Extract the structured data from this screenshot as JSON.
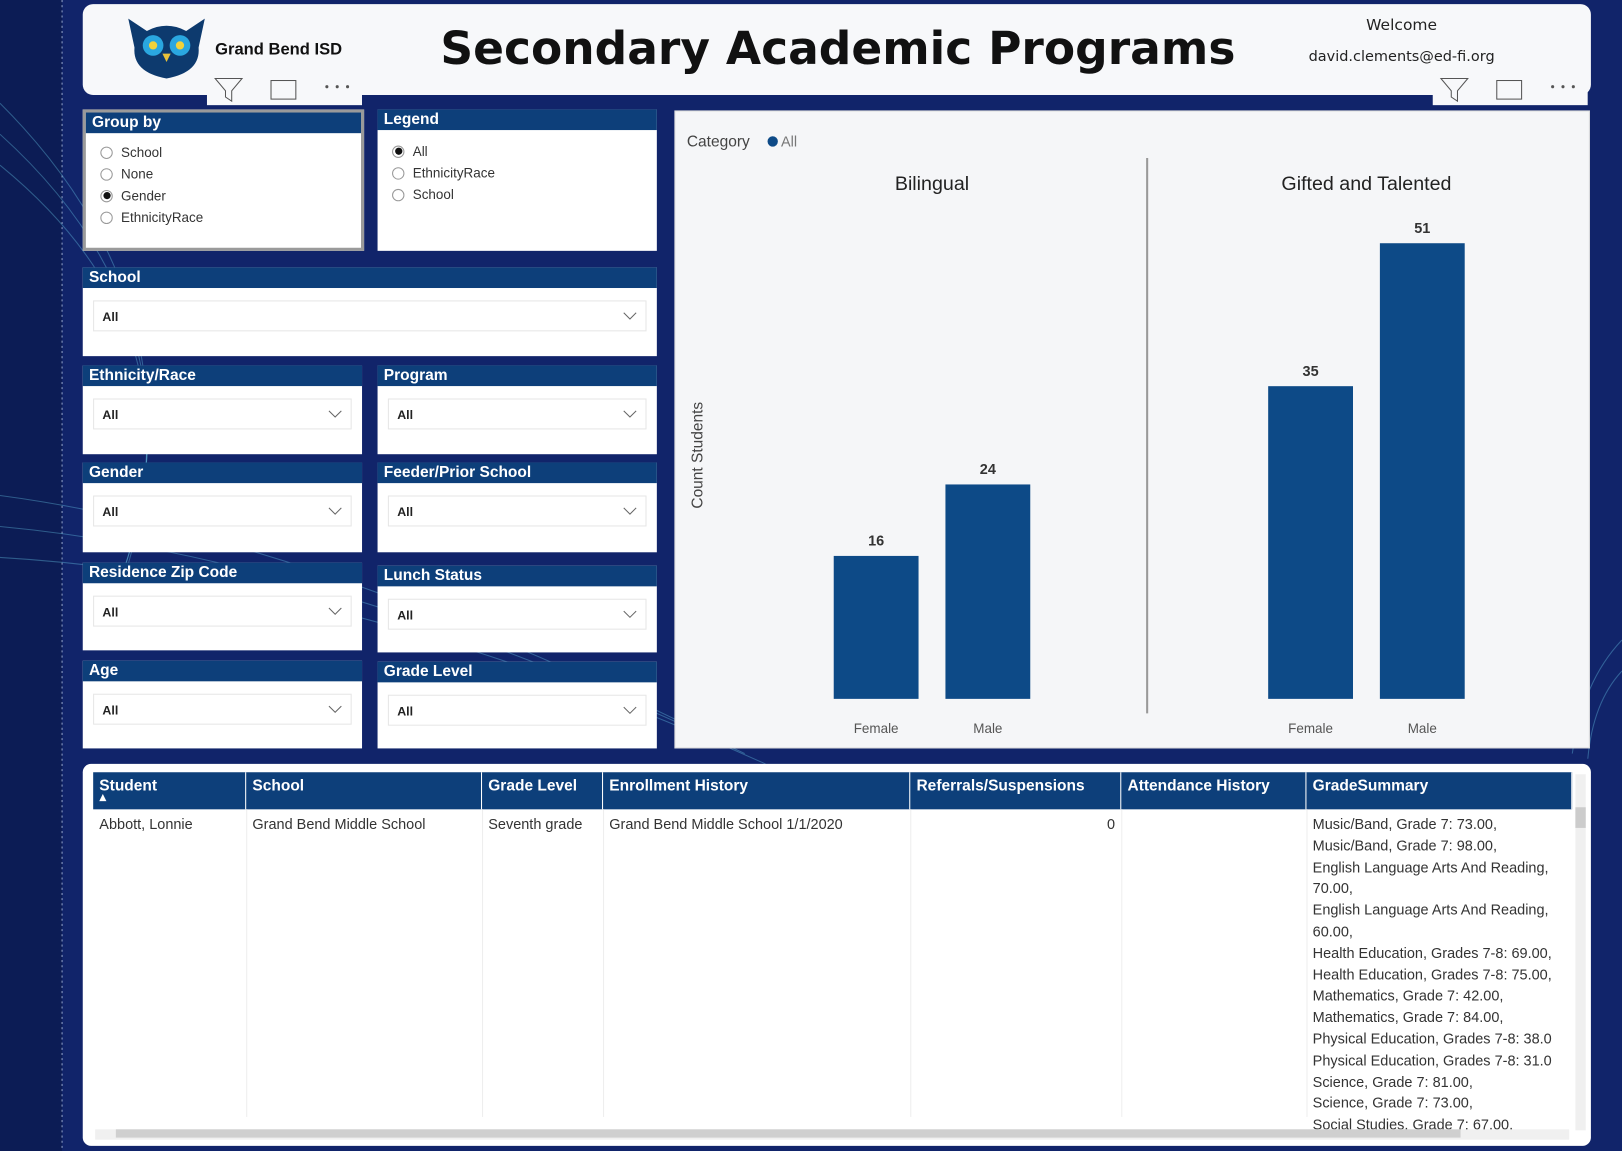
{
  "header": {
    "org": "Grand Bend ISD",
    "title": "Secondary Academic Programs",
    "welcome": "Welcome",
    "email": "david.clements@ed-fi.org"
  },
  "group_by": {
    "title": "Group by",
    "options": [
      "School",
      "None",
      "Gender",
      "EthnicityRace"
    ],
    "selected": "Gender"
  },
  "legend_slicer": {
    "title": "Legend",
    "options": [
      "All",
      "EthnicityRace",
      "School"
    ],
    "selected": "All"
  },
  "slicers": [
    {
      "title": "School",
      "value": "All"
    },
    {
      "title": "Ethnicity/Race",
      "value": "All"
    },
    {
      "title": "Program",
      "value": "All"
    },
    {
      "title": "Gender",
      "value": "All"
    },
    {
      "title": "Feeder/Prior School",
      "value": "All"
    },
    {
      "title": "Residence Zip Code",
      "value": "All"
    },
    {
      "title": "Lunch Status",
      "value": "All"
    },
    {
      "title": "Age",
      "value": "All"
    },
    {
      "title": "Grade Level",
      "value": "All"
    }
  ],
  "chart_data": {
    "type": "bar",
    "legend_title": "Category",
    "y_label": "Count Students",
    "series": [
      {
        "name": "All",
        "color": "#0d4a87"
      }
    ],
    "panels": [
      {
        "title": "Bilingual",
        "categories": [
          "Female",
          "Male"
        ],
        "values": [
          16,
          24
        ]
      },
      {
        "title": "Gifted and Talented",
        "categories": [
          "Female",
          "Male"
        ],
        "values": [
          35,
          51
        ]
      }
    ],
    "ylim": [
      0,
      55
    ]
  },
  "table": {
    "columns": [
      "Student",
      "School",
      "Grade Level",
      "Enrollment History",
      "Referrals/Suspensions",
      "Attendance History",
      "GradeSummary"
    ],
    "rows": [
      [
        "Abbott, Lonnie",
        "Grand Bend Middle School",
        "Seventh grade",
        "Grand Bend Middle School 1/1/2020",
        0,
        null,
        [
          "Music/Band, Grade 7: 73.00,",
          "Music/Band, Grade 7: 98.00,",
          "English Language Arts And Reading,",
          "70.00,",
          "English Language Arts And Reading,",
          "60.00,",
          "Health Education, Grades 7-8: 69.00,",
          "Health Education, Grades 7-8: 75.00,",
          "Mathematics, Grade 7: 42.00,",
          "Mathematics, Grade 7: 84.00,",
          "Physical Education, Grades 7-8: 38.0",
          "Physical Education, Grades 7-8: 31.0",
          "Science, Grade 7: 81.00,",
          "Science, Grade 7: 73.00,",
          "Social Studies, Grade 7: 67.00,"
        ]
      ]
    ]
  }
}
